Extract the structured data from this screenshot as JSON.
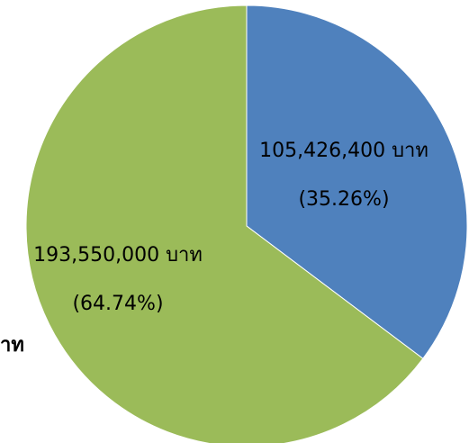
{
  "chart_data": {
    "type": "pie",
    "slices": [
      {
        "value": 105426400,
        "value_label": "105,426,400 บาท",
        "percent_label": "(35.26%)",
        "percent": 35.26,
        "color": "#4F81BD"
      },
      {
        "value": 193550000,
        "value_label": "193,550,000 บาท",
        "percent_label": "(64.74%)",
        "percent": 64.74,
        "color": "#9BBB59"
      }
    ],
    "clipped_text": "าท"
  }
}
